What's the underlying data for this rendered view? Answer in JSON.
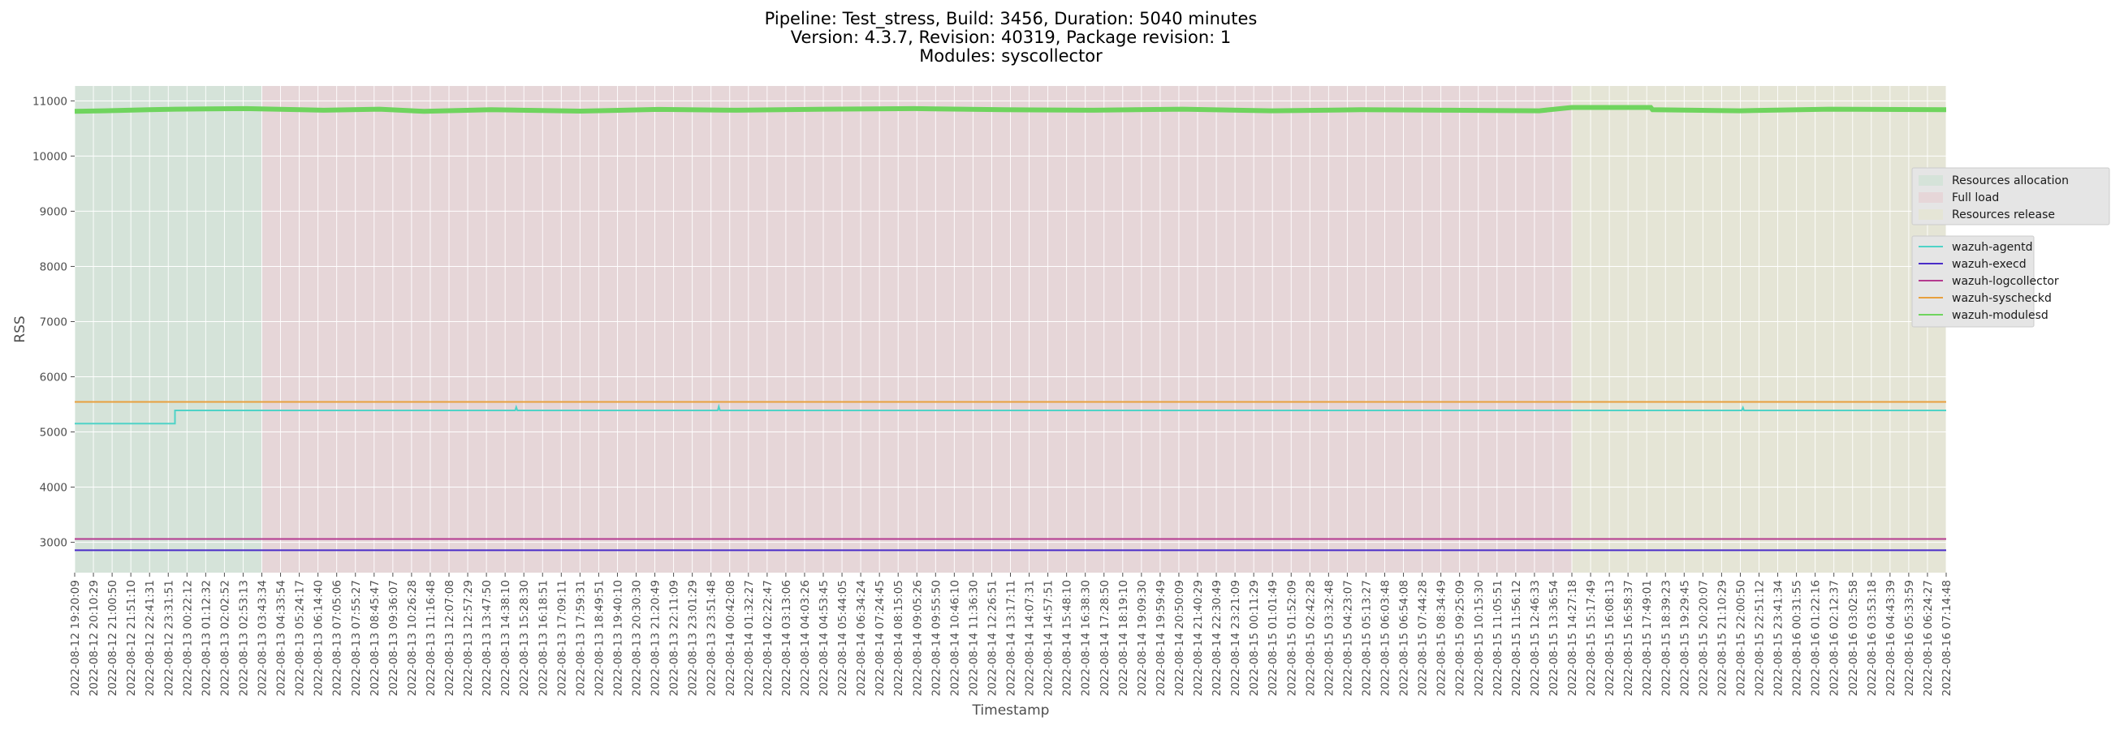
{
  "chart_data": {
    "type": "line",
    "title_lines": [
      "Pipeline: Test_stress, Build: 3456, Duration: 5040 minutes",
      "Version: 4.3.7, Revision: 40319, Package revision: 1",
      "Modules: syscollector"
    ],
    "xlabel": "Timestamp",
    "ylabel": "RSS",
    "ylim": [
      2450,
      11270
    ],
    "yticks": [
      3000,
      4000,
      5000,
      6000,
      7000,
      8000,
      9000,
      10000,
      11000
    ],
    "grid": true,
    "x_tick_labels": [
      "2022-08-12 19:20:09",
      "2022-08-12 20:10:29",
      "2022-08-12 21:00:50",
      "2022-08-12 21:51:10",
      "2022-08-12 22:41:31",
      "2022-08-12 23:31:51",
      "2022-08-13 00:22:12",
      "2022-08-13 01:12:32",
      "2022-08-13 02:02:52",
      "2022-08-13 02:53:13",
      "2022-08-13 03:43:34",
      "2022-08-13 04:33:54",
      "2022-08-13 05:24:17",
      "2022-08-13 06:14:40",
      "2022-08-13 07:05:06",
      "2022-08-13 07:55:27",
      "2022-08-13 08:45:47",
      "2022-08-13 09:36:07",
      "2022-08-13 10:26:28",
      "2022-08-13 11:16:48",
      "2022-08-13 12:07:08",
      "2022-08-13 12:57:29",
      "2022-08-13 13:47:50",
      "2022-08-13 14:38:10",
      "2022-08-13 15:28:30",
      "2022-08-13 16:18:51",
      "2022-08-13 17:09:11",
      "2022-08-13 17:59:31",
      "2022-08-13 18:49:51",
      "2022-08-13 19:40:10",
      "2022-08-13 20:30:30",
      "2022-08-13 21:20:49",
      "2022-08-13 22:11:09",
      "2022-08-13 23:01:29",
      "2022-08-13 23:51:48",
      "2022-08-14 00:42:08",
      "2022-08-14 01:32:27",
      "2022-08-14 02:22:47",
      "2022-08-14 03:13:06",
      "2022-08-14 04:03:26",
      "2022-08-14 04:53:45",
      "2022-08-14 05:44:05",
      "2022-08-14 06:34:24",
      "2022-08-14 07:24:45",
      "2022-08-14 08:15:05",
      "2022-08-14 09:05:26",
      "2022-08-14 09:55:50",
      "2022-08-14 10:46:10",
      "2022-08-14 11:36:30",
      "2022-08-14 12:26:51",
      "2022-08-14 13:17:11",
      "2022-08-14 14:07:31",
      "2022-08-14 14:57:51",
      "2022-08-14 15:48:10",
      "2022-08-14 16:38:30",
      "2022-08-14 17:28:50",
      "2022-08-14 18:19:10",
      "2022-08-14 19:09:30",
      "2022-08-14 19:59:49",
      "2022-08-14 20:50:09",
      "2022-08-14 21:40:29",
      "2022-08-14 22:30:49",
      "2022-08-14 23:21:09",
      "2022-08-15 00:11:29",
      "2022-08-15 01:01:49",
      "2022-08-15 01:52:09",
      "2022-08-15 02:42:28",
      "2022-08-15 03:32:48",
      "2022-08-15 04:23:07",
      "2022-08-15 05:13:27",
      "2022-08-15 06:03:48",
      "2022-08-15 06:54:08",
      "2022-08-15 07:44:28",
      "2022-08-15 08:34:49",
      "2022-08-15 09:25:09",
      "2022-08-15 10:15:30",
      "2022-08-15 11:05:51",
      "2022-08-15 11:56:12",
      "2022-08-15 12:46:33",
      "2022-08-15 13:36:54",
      "2022-08-15 14:27:18",
      "2022-08-15 15:17:49",
      "2022-08-15 16:08:13",
      "2022-08-15 16:58:37",
      "2022-08-15 17:49:01",
      "2022-08-15 18:39:23",
      "2022-08-15 19:29:45",
      "2022-08-15 20:20:07",
      "2022-08-15 21:10:29",
      "2022-08-15 22:00:50",
      "2022-08-15 22:51:12",
      "2022-08-15 23:41:34",
      "2022-08-16 00:31:55",
      "2022-08-16 01:22:16",
      "2022-08-16 02:12:37",
      "2022-08-16 03:02:58",
      "2022-08-16 03:53:18",
      "2022-08-16 04:43:39",
      "2022-08-16 05:33:59",
      "2022-08-16 06:24:27",
      "2022-08-16 07:14:48"
    ],
    "x_range": [
      "2022-08-12 19:20:09",
      "2022-08-16 07:14:48"
    ],
    "phases": [
      {
        "name": "Resources allocation",
        "start": "2022-08-12 19:20:09",
        "end": "2022-08-13 03:43:34",
        "color": "#d5e3d9"
      },
      {
        "name": "Full load",
        "start": "2022-08-13 03:43:34",
        "end": "2022-08-15 14:27:18",
        "color": "#e6d6d8"
      },
      {
        "name": "Resources release",
        "start": "2022-08-15 14:27:18",
        "end": "2022-08-16 07:14:48",
        "color": "#e5e5d6"
      }
    ],
    "series": [
      {
        "name": "wazuh-agentd",
        "color": "#4fd3c7",
        "points": [
          [
            "2022-08-12 19:20:09",
            5150
          ],
          [
            "2022-08-12 23:50:00",
            5150
          ],
          [
            "2022-08-12 23:50:00",
            5390
          ],
          [
            "2022-08-13 15:05:00",
            5390
          ],
          [
            "2022-08-13 15:08:00",
            5450
          ],
          [
            "2022-08-13 15:11:00",
            5390
          ],
          [
            "2022-08-14 00:10:00",
            5390
          ],
          [
            "2022-08-14 00:13:00",
            5460
          ],
          [
            "2022-08-14 00:16:00",
            5390
          ],
          [
            "2022-08-15 22:05:00",
            5390
          ],
          [
            "2022-08-15 22:08:00",
            5440
          ],
          [
            "2022-08-15 22:11:00",
            5390
          ],
          [
            "2022-08-16 07:14:48",
            5390
          ]
        ]
      },
      {
        "name": "wazuh-execd",
        "color": "#4a2dc8",
        "points": [
          [
            "2022-08-12 19:20:09",
            2855
          ],
          [
            "2022-08-16 07:14:48",
            2855
          ]
        ]
      },
      {
        "name": "wazuh-logcollector",
        "color": "#b43a8f",
        "points": [
          [
            "2022-08-12 19:20:09",
            3060
          ],
          [
            "2022-08-16 07:14:48",
            3060
          ]
        ]
      },
      {
        "name": "wazuh-syscheckd",
        "color": "#e8a03e",
        "points": [
          [
            "2022-08-12 19:20:09",
            5545
          ],
          [
            "2022-08-16 07:14:48",
            5545
          ]
        ]
      },
      {
        "name": "wazuh-modulesd",
        "color": "#6fd45e",
        "points": [
          [
            "2022-08-12 19:20:09",
            10810
          ],
          [
            "2022-08-12 20:40:00",
            10820
          ],
          [
            "2022-08-12 22:40:00",
            10840
          ],
          [
            "2022-08-12 23:50:00",
            10850
          ],
          [
            "2022-08-13 03:00:00",
            10860
          ],
          [
            "2022-08-13 06:30:00",
            10830
          ],
          [
            "2022-08-13 09:00:00",
            10850
          ],
          [
            "2022-08-13 11:00:00",
            10810
          ],
          [
            "2022-08-13 14:00:00",
            10840
          ],
          [
            "2022-08-13 18:00:00",
            10815
          ],
          [
            "2022-08-13 21:30:00",
            10845
          ],
          [
            "2022-08-14 01:00:00",
            10830
          ],
          [
            "2022-08-14 05:00:00",
            10850
          ],
          [
            "2022-08-14 09:00:00",
            10860
          ],
          [
            "2022-08-14 13:00:00",
            10840
          ],
          [
            "2022-08-14 17:00:00",
            10830
          ],
          [
            "2022-08-14 21:00:00",
            10850
          ],
          [
            "2022-08-15 01:00:00",
            10820
          ],
          [
            "2022-08-15 05:00:00",
            10840
          ],
          [
            "2022-08-15 09:00:00",
            10830
          ],
          [
            "2022-08-15 13:00:00",
            10820
          ],
          [
            "2022-08-15 14:27:18",
            10880
          ],
          [
            "2022-08-15 18:00:00",
            10880
          ],
          [
            "2022-08-15 18:05:00",
            10840
          ],
          [
            "2022-08-15 22:00:00",
            10820
          ],
          [
            "2022-08-16 02:00:00",
            10850
          ],
          [
            "2022-08-16 07:14:48",
            10840
          ]
        ]
      }
    ]
  }
}
